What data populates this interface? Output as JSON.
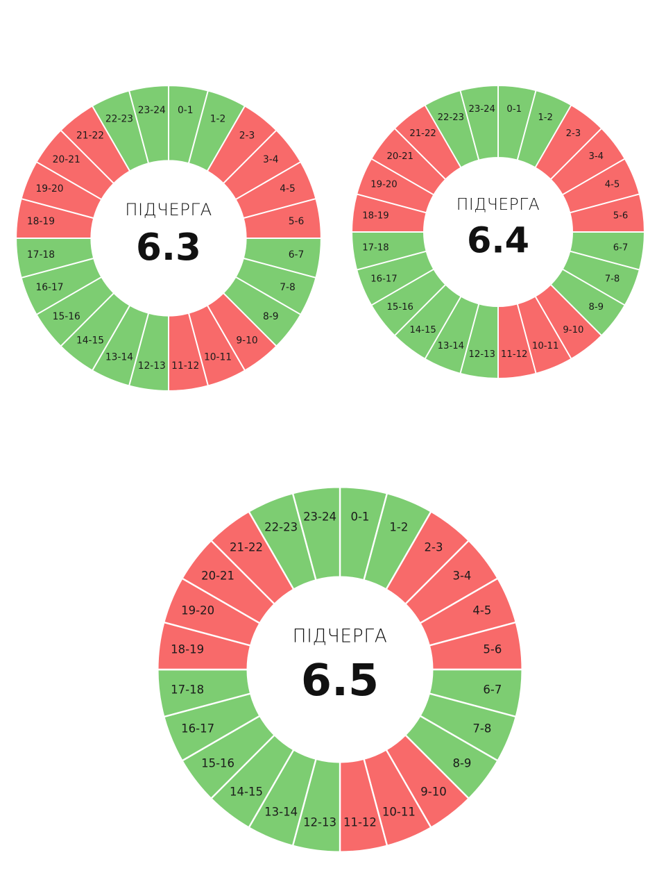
{
  "colors": {
    "on": "#7dcd72",
    "off": "#f86a6a",
    "separator": "#ffffff"
  },
  "chart_data": [
    {
      "type": "pie",
      "caption": "ПІДЧЕРГА",
      "queue": "6.3",
      "categories": [
        "0-1",
        "1-2",
        "2-3",
        "3-4",
        "4-5",
        "5-6",
        "6-7",
        "7-8",
        "8-9",
        "9-10",
        "10-11",
        "11-12",
        "12-13",
        "13-14",
        "14-15",
        "15-16",
        "16-17",
        "17-18",
        "18-19",
        "19-20",
        "20-21",
        "21-22",
        "22-23",
        "23-24"
      ],
      "status": [
        "on",
        "on",
        "off",
        "off",
        "off",
        "off",
        "on",
        "on",
        "on",
        "off",
        "off",
        "off",
        "on",
        "on",
        "on",
        "on",
        "on",
        "on",
        "off",
        "off",
        "off",
        "off",
        "on",
        "on"
      ]
    },
    {
      "type": "pie",
      "caption": "ПІДЧЕРГА",
      "queue": "6.4",
      "categories": [
        "0-1",
        "1-2",
        "2-3",
        "3-4",
        "4-5",
        "5-6",
        "6-7",
        "7-8",
        "8-9",
        "9-10",
        "10-11",
        "11-12",
        "12-13",
        "13-14",
        "14-15",
        "15-16",
        "16-17",
        "17-18",
        "18-19",
        "19-20",
        "20-21",
        "21-22",
        "22-23",
        "23-24"
      ],
      "status": [
        "on",
        "on",
        "off",
        "off",
        "off",
        "off",
        "on",
        "on",
        "on",
        "off",
        "off",
        "off",
        "on",
        "on",
        "on",
        "on",
        "on",
        "on",
        "off",
        "off",
        "off",
        "off",
        "on",
        "on"
      ]
    },
    {
      "type": "pie",
      "caption": "ПІДЧЕРГА",
      "queue": "6.5",
      "categories": [
        "0-1",
        "1-2",
        "2-3",
        "3-4",
        "4-5",
        "5-6",
        "6-7",
        "7-8",
        "8-9",
        "9-10",
        "10-11",
        "11-12",
        "12-13",
        "13-14",
        "14-15",
        "15-16",
        "16-17",
        "17-18",
        "18-19",
        "19-20",
        "20-21",
        "21-22",
        "22-23",
        "23-24"
      ],
      "status": [
        "on",
        "on",
        "off",
        "off",
        "off",
        "off",
        "on",
        "on",
        "on",
        "off",
        "off",
        "off",
        "on",
        "on",
        "on",
        "on",
        "on",
        "on",
        "off",
        "off",
        "off",
        "off",
        "on",
        "on"
      ]
    }
  ]
}
